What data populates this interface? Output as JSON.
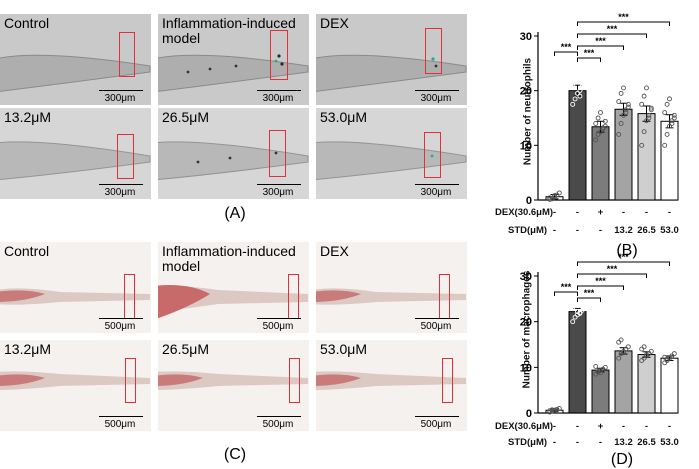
{
  "panel_labels": {
    "A": "(A)",
    "B": "(B)",
    "C": "(C)",
    "D": "(D)"
  },
  "neutrophil_images": [
    {
      "label": "Control",
      "scale": "300μm"
    },
    {
      "label": "Inflammation-induced model",
      "scale": "300μm"
    },
    {
      "label": "DEX",
      "scale": "300μm"
    },
    {
      "label": "13.2μM",
      "scale": "300μm"
    },
    {
      "label": "26.5μM",
      "scale": "300μm"
    },
    {
      "label": "53.0μM",
      "scale": "300μm"
    }
  ],
  "macrophage_images": [
    {
      "label": "Control",
      "scale": "500μm"
    },
    {
      "label": "Inflammation-induced model",
      "scale": "500μm"
    },
    {
      "label": "DEX",
      "scale": "500μm"
    },
    {
      "label": "13.2μM",
      "scale": "500μm"
    },
    {
      "label": "26.5μM",
      "scale": "500μm"
    },
    {
      "label": "53.0μM",
      "scale": "500μm"
    }
  ],
  "treatment_table": {
    "row1_label": "DEX(30.6μM)",
    "row2_label": "STD(μM)",
    "row1": [
      "-",
      "-",
      "+",
      "-",
      "-",
      "-"
    ],
    "row2": [
      "-",
      "-",
      "-",
      "13.2",
      "26.5",
      "53.0"
    ]
  },
  "significance_label": "***",
  "colors": {
    "neutrophil_bg": "#c9c9c9",
    "macrophage_bg": "#f4f1ef",
    "roi": "#e0303a",
    "bar_fills": [
      "#ffffff",
      "#4a4a4a",
      "#7c7c7c",
      "#a4a4a4",
      "#cfcfcf",
      "#ffffff"
    ]
  },
  "chart_data": [
    {
      "type": "bar",
      "ylabel": "Number of neutrophils",
      "ylim": [
        0,
        30
      ],
      "yticks": [
        0,
        10,
        20,
        30
      ],
      "values": [
        0.6,
        20.0,
        13.4,
        16.6,
        15.8,
        14.4
      ],
      "errors": [
        0.4,
        1.0,
        1.0,
        1.1,
        1.4,
        1.2
      ],
      "points": [
        [
          0.1,
          0.3,
          0.6,
          0.9,
          1.3,
          0.4,
          0.2,
          0.8
        ],
        [
          17.5,
          18.5,
          19.5,
          20.0,
          20.5,
          21.0,
          22.0,
          23.0,
          19.0,
          20.8
        ],
        [
          11.0,
          12.0,
          12.5,
          13.0,
          13.5,
          14.0,
          15.0,
          16.0,
          13.2,
          14.4
        ],
        [
          12.0,
          14.0,
          15.5,
          16.5,
          17.5,
          18.0,
          19.5,
          20.5,
          16.0,
          17.0
        ],
        [
          10.0,
          12.5,
          14.5,
          15.5,
          16.5,
          17.5,
          19.0,
          20.5,
          15.0,
          16.8
        ],
        [
          10.0,
          12.0,
          13.5,
          14.5,
          15.5,
          16.0,
          17.5,
          18.5,
          14.0,
          15.0
        ]
      ],
      "comparisons": [
        {
          "from": 1,
          "to": 5
        },
        {
          "from": 1,
          "to": 4
        },
        {
          "from": 1,
          "to": 3
        },
        {
          "from": 1,
          "to": 2
        },
        {
          "from": 0,
          "to": 1
        }
      ]
    },
    {
      "type": "bar",
      "ylabel": "Number of macrophages",
      "ylim": [
        0,
        30
      ],
      "yticks": [
        0,
        10,
        20,
        30
      ],
      "values": [
        0.6,
        22.2,
        9.4,
        13.6,
        12.8,
        12.0
      ],
      "errors": [
        0.3,
        0.7,
        0.4,
        0.7,
        0.6,
        0.5
      ],
      "points": [
        [
          0.2,
          0.4,
          0.6,
          0.8,
          1.0,
          0.5,
          0.7
        ],
        [
          20.0,
          21.0,
          21.5,
          22.0,
          22.5,
          23.0,
          24.0,
          22.2,
          21.8
        ],
        [
          8.5,
          9.0,
          9.3,
          9.6,
          10.0,
          10.2,
          9.1,
          8.8
        ],
        [
          12.0,
          13.0,
          13.5,
          14.0,
          14.5,
          15.5,
          16.0,
          13.2
        ],
        [
          11.5,
          12.0,
          12.5,
          13.0,
          13.5,
          14.0,
          14.5,
          12.8
        ],
        [
          11.0,
          11.5,
          12.0,
          12.5,
          13.0,
          12.2,
          11.8
        ]
      ],
      "comparisons": [
        {
          "from": 1,
          "to": 5
        },
        {
          "from": 1,
          "to": 4
        },
        {
          "from": 1,
          "to": 3
        },
        {
          "from": 1,
          "to": 2
        },
        {
          "from": 0,
          "to": 1
        }
      ]
    }
  ]
}
